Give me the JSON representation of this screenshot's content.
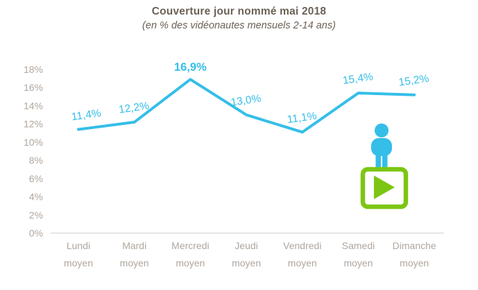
{
  "header": {
    "title": "Couverture jour nommé mai 2018",
    "subtitle": "(en % des vidéonautes mensuels 2-14 ans)"
  },
  "colors": {
    "line": "#35BEE8",
    "data_label": "#35BEE8",
    "title_text": "#6C6156",
    "axis_text": "#B0A69E",
    "axis_line": "#DAD5D0",
    "play_green": "#7CC613"
  },
  "icons": {
    "person_icon": "person-icon",
    "play_button_icon": "play-button-icon"
  },
  "chart_data": {
    "type": "line",
    "title": "Couverture jour nommé mai 2018",
    "subtitle": "(en % des vidéonautes mensuels 2-14 ans)",
    "categories": [
      "Lundi moyen",
      "Mardi moyen",
      "Mercredi moyen",
      "Jeudi moyen",
      "Vendredi moyen",
      "Samedi moyen",
      "Dimanche moyen"
    ],
    "category_line1": [
      "Lundi",
      "Mardi",
      "Mercredi",
      "Jeudi",
      "Vendredi",
      "Samedi",
      "Dimanche"
    ],
    "category_line2": "moyen",
    "values": [
      11.4,
      12.2,
      16.9,
      13.0,
      11.1,
      15.4,
      15.2
    ],
    "value_labels": [
      "11,4%",
      "12,2%",
      "16,9%",
      "13,0%",
      "11,1%",
      "15,4%",
      "15,2%"
    ],
    "highlight_index": 2,
    "xlabel": "",
    "ylabel": "",
    "ylim": [
      0,
      18
    ],
    "y_tick_step": 2,
    "y_tick_labels": [
      "0%",
      "2%",
      "4%",
      "6%",
      "8%",
      "10%",
      "12%",
      "14%",
      "16%",
      "18%"
    ],
    "grid": false,
    "legend": "none"
  }
}
